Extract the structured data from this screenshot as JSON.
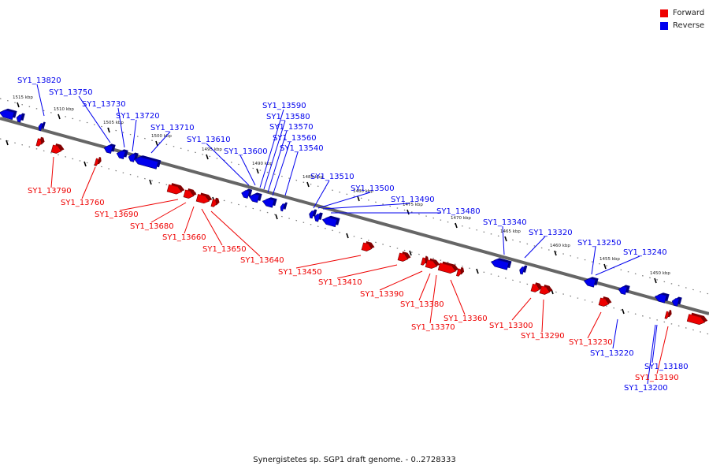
{
  "legend": {
    "items": [
      {
        "label": "Forward",
        "color": "#ee0000"
      },
      {
        "label": "Reverse",
        "color": "#0000ee"
      }
    ]
  },
  "caption": "Synergistetes sp. SGP1 draft genome. - 0..2728333",
  "colors": {
    "forward": "#ee0000",
    "reverse": "#0000ee",
    "backbone": "#666666"
  },
  "axis_ticks": [
    {
      "label": "1515 kbp"
    },
    {
      "label": "1510 kbp"
    },
    {
      "label": "1505 kbp"
    },
    {
      "label": "1500 kbp"
    },
    {
      "label": "1495 kbp"
    },
    {
      "label": "1490 kbp"
    },
    {
      "label": "1485 kbp"
    },
    {
      "label": "1480 kbp"
    },
    {
      "label": "1475 kbp"
    },
    {
      "label": "1470 kbp"
    },
    {
      "label": "1465 kbp"
    },
    {
      "label": "1460 kbp"
    },
    {
      "label": "1455 kbp"
    },
    {
      "label": "1450 kbp"
    }
  ],
  "reverse_genes": [
    {
      "label": "SY1_13820"
    },
    {
      "label": "SY1_13750"
    },
    {
      "label": "SY1_13730"
    },
    {
      "label": "SY1_13720"
    },
    {
      "label": "SY1_13710"
    },
    {
      "label": "SY1_13610"
    },
    {
      "label": "SY1_13600"
    },
    {
      "label": "SY1_13590"
    },
    {
      "label": "SY1_13580"
    },
    {
      "label": "SY1_13570"
    },
    {
      "label": "SY1_13560"
    },
    {
      "label": "SY1_13540"
    },
    {
      "label": "SY1_13510"
    },
    {
      "label": "SY1_13500"
    },
    {
      "label": "SY1_13490"
    },
    {
      "label": "SY1_13480"
    },
    {
      "label": "SY1_13340"
    },
    {
      "label": "SY1_13320"
    },
    {
      "label": "SY1_13250"
    },
    {
      "label": "SY1_13240"
    },
    {
      "label": "SY1_13220"
    },
    {
      "label": "SY1_13180"
    },
    {
      "label": "SY1_13200"
    }
  ],
  "forward_genes": [
    {
      "label": "SY1_13790"
    },
    {
      "label": "SY1_13760"
    },
    {
      "label": "SY1_13690"
    },
    {
      "label": "SY1_13680"
    },
    {
      "label": "SY1_13660"
    },
    {
      "label": "SY1_13650"
    },
    {
      "label": "SY1_13640"
    },
    {
      "label": "SY1_13450"
    },
    {
      "label": "SY1_13410"
    },
    {
      "label": "SY1_13390"
    },
    {
      "label": "SY1_13380"
    },
    {
      "label": "SY1_13370"
    },
    {
      "label": "SY1_13360"
    },
    {
      "label": "SY1_13300"
    },
    {
      "label": "SY1_13290"
    },
    {
      "label": "SY1_13230"
    },
    {
      "label": "SY1_13190"
    }
  ]
}
